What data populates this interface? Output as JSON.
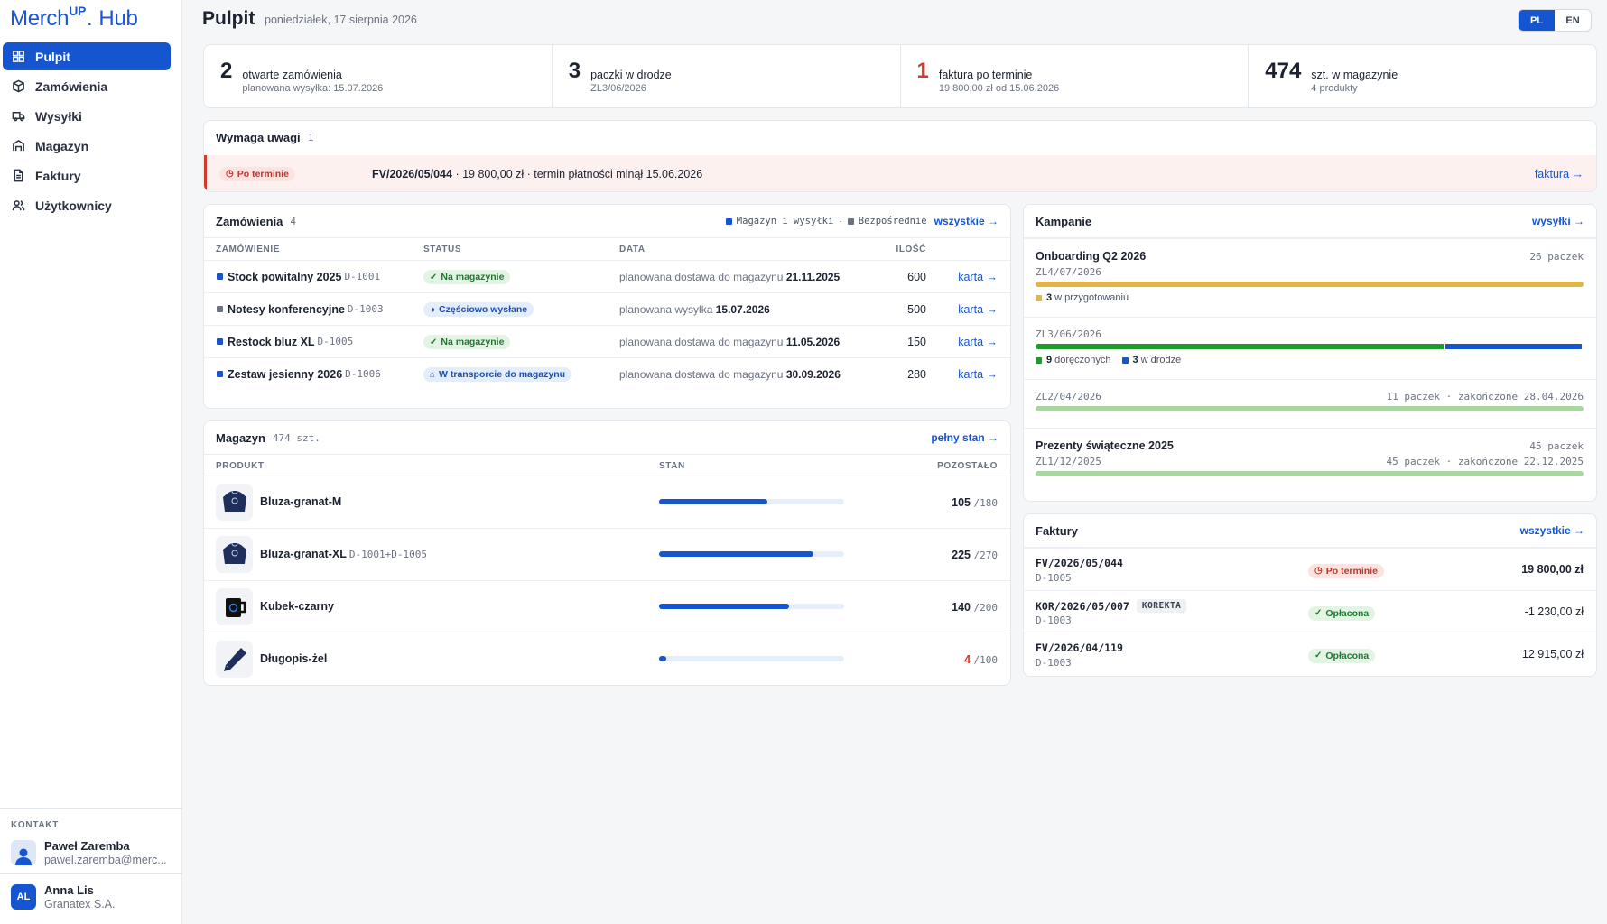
{
  "brand": {
    "name_a": "Merch",
    "name_up": "UP",
    "name_b": "Hub",
    "accent": "#1556d0"
  },
  "nav": [
    {
      "label": "Pulpit",
      "icon": "grid-icon",
      "active": true
    },
    {
      "label": "Zamówienia",
      "icon": "box-icon"
    },
    {
      "label": "Wysyłki",
      "icon": "truck-icon"
    },
    {
      "label": "Magazyn",
      "icon": "warehouse-icon"
    },
    {
      "label": "Faktury",
      "icon": "document-icon"
    },
    {
      "label": "Użytkownicy",
      "icon": "users-icon"
    }
  ],
  "contact": {
    "heading": "KONTAKT",
    "name": "Paweł Zaremba",
    "email": "pawel.zaremba@merc..."
  },
  "user": {
    "initials": "AL",
    "name": "Anna Lis",
    "company": "Granatex S.A."
  },
  "header": {
    "title": "Pulpit",
    "date": "poniedziałek, 17 sierpnia 2026"
  },
  "lang": {
    "pl": "PL",
    "en": "EN",
    "selected": "PL"
  },
  "kpis": [
    {
      "value": "2",
      "label": "otwarte zamówienia",
      "sub": "planowana wysyłka: 15.07.2026"
    },
    {
      "value": "3",
      "label": "paczki w drodze",
      "sub": "ZL3/06/2026"
    },
    {
      "value": "1",
      "label": "faktura po terminie",
      "sub": "19 800,00 zł od 15.06.2026",
      "alert": true
    },
    {
      "value": "474",
      "label": "szt. w magazynie",
      "sub": "4 produkty"
    }
  ],
  "attention": {
    "title": "Wymaga uwagi",
    "count": "1",
    "badge": "Po terminie",
    "invoice": "FV/2026/05/044",
    "text": " · 19 800,00 zł · termin płatności minął 15.06.2026",
    "link": "faktura →"
  },
  "orders": {
    "title": "Zamówienia",
    "count": "4",
    "legend_a": "Magazyn i wysyłki",
    "legend_b": "Bezpośrednie",
    "link": "wszystkie →",
    "headers": {
      "order": "ZAMÓWIENIE",
      "status": "STATUS",
      "date": "DATA",
      "qty": "ILOŚĆ"
    },
    "rows": [
      {
        "name": "Stock powitalny 2025",
        "code": "D-1001",
        "type": "Magazyn i wysyłki",
        "status": "Na magazynie",
        "status_icon": "check-icon",
        "status_tone": "green",
        "date_prefix": "planowana dostawa do magazynu",
        "date": "21.11.2025",
        "qty": "600",
        "link": "karta →"
      },
      {
        "name": "Notesy konferencyjne",
        "code": "D-1003",
        "type": "Bezpośrednie",
        "status": "Częściowo wysłane",
        "status_icon": "half-circle-icon",
        "status_tone": "blue",
        "date_prefix": "planowana wysyłka",
        "date": "15.07.2026",
        "qty": "500",
        "link": "karta →"
      },
      {
        "name": "Restock bluz XL",
        "code": "D-1005",
        "type": "Magazyn i wysyłki",
        "status": "Na magazynie",
        "status_icon": "check-icon",
        "status_tone": "green",
        "date_prefix": "planowana dostawa do magazynu",
        "date": "11.05.2026",
        "qty": "150",
        "link": "karta →"
      },
      {
        "name": "Zestaw jesienny 2026",
        "code": "D-1006",
        "type": "Magazyn i wysyłki",
        "status": "W transporcie do magazynu",
        "status_icon": "warehouse-icon",
        "status_tone": "blue",
        "date_prefix": "planowana dostawa do magazynu",
        "date": "30.09.2026",
        "qty": "280",
        "link": "karta →"
      }
    ]
  },
  "warehouse": {
    "title": "Magazyn",
    "count": "474 szt.",
    "link": "pełny stan →",
    "headers": {
      "product": "PRODUKT",
      "stock": "STAN",
      "left": "POZOSTAŁO"
    },
    "rows": [
      {
        "name": "Bluza-granat-M",
        "code": "",
        "image": "hoodie-image",
        "left": "105",
        "total": "/180",
        "fraction": 0.583
      },
      {
        "name": "Bluza-granat-XL",
        "code": "D-1001+D-1005",
        "image": "hoodie-image",
        "left": "225",
        "total": "/270",
        "fraction": 0.833
      },
      {
        "name": "Kubek-czarny",
        "code": "",
        "image": "mug-image",
        "left": "140",
        "total": "/200",
        "fraction": 0.7
      },
      {
        "name": "Długopis-żel",
        "code": "",
        "image": "pen-image",
        "left": "4",
        "total": "/100",
        "fraction": 0.04,
        "low": true
      }
    ]
  },
  "campaigns": {
    "title": "Kampanie",
    "link": "wysyłki →",
    "groups": [
      {
        "name": "Onboarding Q2 2026",
        "right": "26 paczek",
        "shipments": [
          {
            "code": "ZL4/07/2026",
            "segments": [
              {
                "fraction": 1.0,
                "color": "#e0b54a"
              }
            ],
            "legend": [
              {
                "color": "#e0b54a",
                "num": "3",
                "text": "w przygotowaniu"
              }
            ]
          },
          {
            "code": "ZL3/06/2026",
            "segments": [
              {
                "fraction": 0.75,
                "color": "#1f9a2c"
              },
              {
                "fraction": 0.25,
                "color": "#1556d0"
              }
            ],
            "legend": [
              {
                "color": "#1f9a2c",
                "num": "9",
                "text": "doręczonych"
              },
              {
                "color": "#1556d0",
                "num": "3",
                "text": "w drodze"
              }
            ]
          },
          {
            "code": "ZL2/04/2026",
            "right": "11 paczek · zakończone 28.04.2026",
            "segments": [
              {
                "fraction": 1.0,
                "color": "#a8d8a0"
              }
            ]
          }
        ]
      },
      {
        "name": "Prezenty świąteczne 2025",
        "right": "45 paczek",
        "shipments": [
          {
            "code": "ZL1/12/2025",
            "right": "45 paczek · zakończone 22.12.2025",
            "segments": [
              {
                "fraction": 1.0,
                "color": "#a8d8a0"
              }
            ]
          }
        ]
      }
    ]
  },
  "invoices": {
    "title": "Faktury",
    "link": "wszystkie →",
    "rows": [
      {
        "number": "FV/2026/05/044",
        "order": "D-1005",
        "status": "Po terminie",
        "tone": "red",
        "amount": "19 800,00 zł",
        "bold": true
      },
      {
        "number": "KOR/2026/05/007",
        "tag": "KOREKTA",
        "order": "D-1003",
        "status": "Opłacona",
        "tone": "green",
        "amount": "-1 230,00 zł"
      },
      {
        "number": "FV/2026/04/119",
        "order": "D-1003",
        "status": "Opłacona",
        "tone": "green",
        "amount": "12 915,00 zł"
      }
    ]
  }
}
